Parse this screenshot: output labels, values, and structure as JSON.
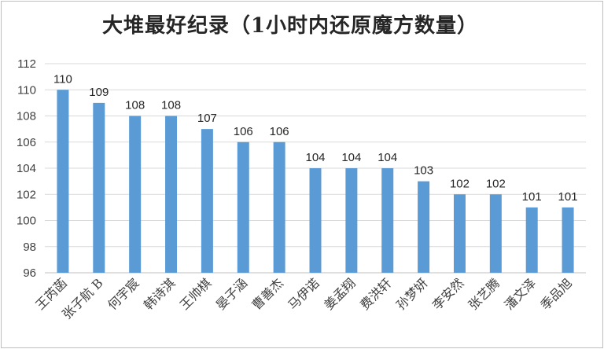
{
  "chart_data": {
    "type": "bar",
    "title": "大堆最好纪录（1小时内还原魔方数量）",
    "xlabel": "",
    "ylabel": "",
    "ylim": [
      96,
      112
    ],
    "yticks": [
      96,
      98,
      100,
      102,
      104,
      106,
      108,
      110,
      112
    ],
    "grid": true,
    "legend": "none",
    "bar_color": "#5B9BD5",
    "categories": [
      "王芮菡",
      "张子航 B",
      "何宇宸",
      "韩诗淇",
      "王帅棋",
      "晏子涵",
      "曹善杰",
      "马伊诺",
      "姜孟翔",
      "费洪轩",
      "孙梦妍",
      "李安然",
      "张艺腾",
      "潘文泽",
      "季品旭"
    ],
    "values": [
      110,
      109,
      108,
      108,
      107,
      106,
      106,
      104,
      104,
      104,
      103,
      102,
      102,
      101,
      101
    ]
  }
}
